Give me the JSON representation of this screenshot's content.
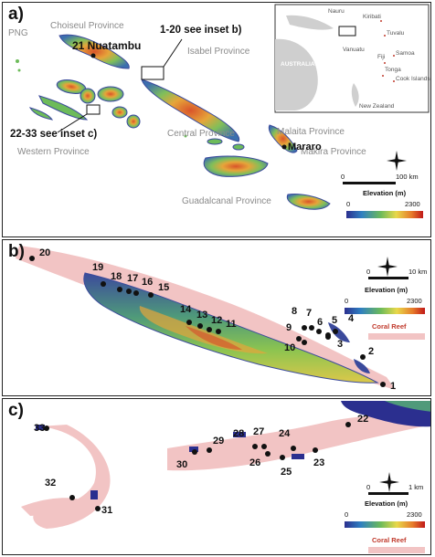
{
  "panel_a": {
    "label": "a)",
    "provinces": {
      "png": "PNG",
      "choiseul": "Choiseul Province",
      "isabel": "Isabel Province",
      "central": "Central Province",
      "western": "Western Province",
      "malaita": "Malaita Province",
      "makira": "Makira Province",
      "guadalcanal": "Guadalcanal Province"
    },
    "sites": {
      "nuatambu": "21 Nuatambu",
      "mararo": "Mararo"
    },
    "callouts": {
      "inset_b": "1-20 see inset b)",
      "inset_c": "22-33 see inset c)"
    },
    "inset_map": {
      "nauru": "Nauru",
      "kiribati": "Kiribati",
      "tuvalu": "Tuvalu",
      "vanuatu": "Vanuatu",
      "fiji": "Fiji",
      "samoa": "Samoa",
      "tonga": "Tonga",
      "cook_islands": "Cook Islands",
      "australia": "AUSTRALIA",
      "new_zealand": "New Zealand"
    },
    "legend": {
      "scale_start": "0",
      "scale_end": "100 km",
      "elevation_title": "Elevation (m)",
      "min": "0",
      "max": "2300"
    }
  },
  "panel_b": {
    "label": "b)",
    "sites": [
      "1",
      "2",
      "3",
      "4",
      "5",
      "6",
      "7",
      "8",
      "9",
      "10",
      "11",
      "12",
      "13",
      "14",
      "15",
      "16",
      "17",
      "18",
      "19",
      "20"
    ],
    "legend": {
      "scale_start": "0",
      "scale_end": "10 km",
      "elevation_title": "Elevation (m)",
      "min": "0",
      "max": "2300",
      "reef": "Coral Reef"
    }
  },
  "panel_c": {
    "label": "c)",
    "sites": [
      "22",
      "23",
      "24",
      "25",
      "26",
      "27",
      "28",
      "29",
      "30",
      "31",
      "32",
      "33"
    ],
    "legend": {
      "scale_start": "0",
      "scale_end": "1 km",
      "elevation_title": "Elevation (m)",
      "min": "0",
      "max": "2300",
      "reef": "Coral Reef"
    }
  },
  "colors": {
    "reef": "#f2c4c4",
    "land_low": "#3b4a9c",
    "land_mid": "#7fbf5a",
    "land_high": "#e07a2e",
    "peak": "#d62828",
    "sea": "#ffffff"
  }
}
